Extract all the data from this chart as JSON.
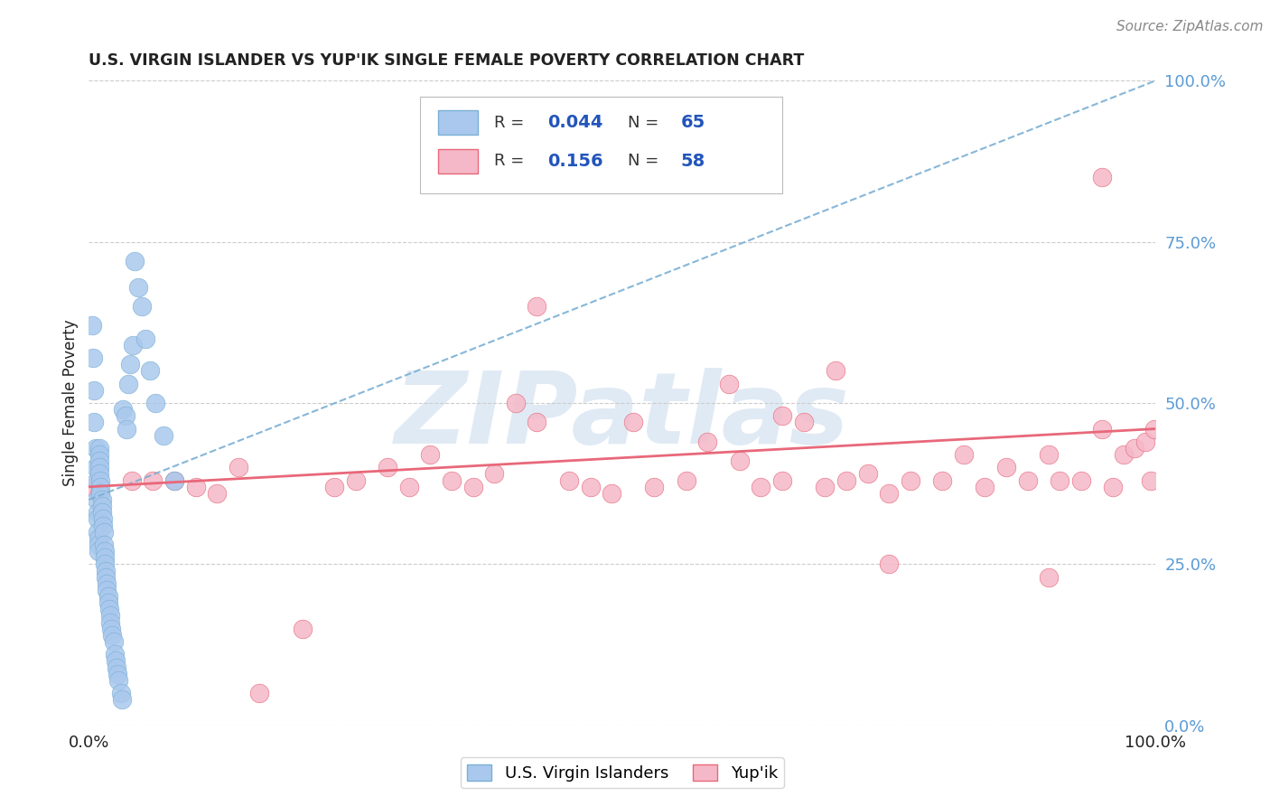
{
  "title": "U.S. VIRGIN ISLANDER VS YUP'IK SINGLE FEMALE POVERTY CORRELATION CHART",
  "source": "Source: ZipAtlas.com",
  "ylabel": "Single Female Poverty",
  "xlim": [
    0.0,
    1.0
  ],
  "ylim": [
    0.0,
    1.0
  ],
  "ytick_values": [
    0.0,
    0.25,
    0.5,
    0.75,
    1.0
  ],
  "ytick_labels": [
    "0.0%",
    "25.0%",
    "50.0%",
    "75.0%",
    "100.0%"
  ],
  "watermark_text": "ZIPatlas",
  "series": [
    {
      "name": "U.S. Virgin Islanders",
      "R": 0.044,
      "N": 65,
      "dot_color": "#aac8ed",
      "dot_edge_color": "#7aafd4",
      "line_color": "#7aafd4",
      "line_style": "--",
      "line_width": 1.5,
      "legend_box_color": "#aac8ed",
      "legend_box_edge": "#7aafd4"
    },
    {
      "name": "Yup'ik",
      "R": 0.156,
      "N": 58,
      "dot_color": "#f5b8c8",
      "dot_edge_color": "#e8687a",
      "line_color": "#e8687a",
      "line_style": "-",
      "line_width": 2.0,
      "legend_box_color": "#f5b8c8",
      "legend_box_edge": "#e8687a"
    }
  ],
  "vi_x": [
    0.003,
    0.004,
    0.005,
    0.005,
    0.006,
    0.006,
    0.007,
    0.007,
    0.008,
    0.008,
    0.008,
    0.009,
    0.009,
    0.009,
    0.01,
    0.01,
    0.01,
    0.01,
    0.01,
    0.011,
    0.011,
    0.011,
    0.012,
    0.012,
    0.012,
    0.013,
    0.013,
    0.014,
    0.014,
    0.015,
    0.015,
    0.015,
    0.016,
    0.016,
    0.017,
    0.017,
    0.018,
    0.018,
    0.019,
    0.02,
    0.02,
    0.021,
    0.022,
    0.023,
    0.024,
    0.025,
    0.026,
    0.027,
    0.028,
    0.03,
    0.031,
    0.032,
    0.034,
    0.035,
    0.037,
    0.039,
    0.041,
    0.043,
    0.046,
    0.05,
    0.053,
    0.057,
    0.062,
    0.07,
    0.08
  ],
  "vi_y": [
    0.62,
    0.57,
    0.52,
    0.47,
    0.43,
    0.4,
    0.38,
    0.35,
    0.33,
    0.32,
    0.3,
    0.29,
    0.28,
    0.27,
    0.43,
    0.42,
    0.41,
    0.4,
    0.39,
    0.38,
    0.37,
    0.36,
    0.35,
    0.34,
    0.33,
    0.32,
    0.31,
    0.3,
    0.28,
    0.27,
    0.26,
    0.25,
    0.24,
    0.23,
    0.22,
    0.21,
    0.2,
    0.19,
    0.18,
    0.17,
    0.16,
    0.15,
    0.14,
    0.13,
    0.11,
    0.1,
    0.09,
    0.08,
    0.07,
    0.05,
    0.04,
    0.49,
    0.48,
    0.46,
    0.53,
    0.56,
    0.59,
    0.72,
    0.68,
    0.65,
    0.6,
    0.55,
    0.5,
    0.45,
    0.38
  ],
  "yupik_x": [
    0.005,
    0.01,
    0.04,
    0.06,
    0.08,
    0.1,
    0.12,
    0.16,
    0.2,
    0.23,
    0.25,
    0.28,
    0.3,
    0.32,
    0.34,
    0.36,
    0.38,
    0.4,
    0.42,
    0.45,
    0.47,
    0.49,
    0.51,
    0.53,
    0.56,
    0.58,
    0.61,
    0.63,
    0.65,
    0.67,
    0.69,
    0.71,
    0.73,
    0.75,
    0.77,
    0.8,
    0.82,
    0.84,
    0.86,
    0.88,
    0.9,
    0.91,
    0.93,
    0.95,
    0.96,
    0.97,
    0.98,
    0.99,
    0.995,
    0.999,
    0.14,
    0.42,
    0.6,
    0.65,
    0.7,
    0.75,
    0.9,
    0.95
  ],
  "yupik_y": [
    0.37,
    0.36,
    0.38,
    0.38,
    0.38,
    0.37,
    0.36,
    0.05,
    0.15,
    0.37,
    0.38,
    0.4,
    0.37,
    0.42,
    0.38,
    0.37,
    0.39,
    0.5,
    0.47,
    0.38,
    0.37,
    0.36,
    0.47,
    0.37,
    0.38,
    0.44,
    0.41,
    0.37,
    0.38,
    0.47,
    0.37,
    0.38,
    0.39,
    0.36,
    0.38,
    0.38,
    0.42,
    0.37,
    0.4,
    0.38,
    0.42,
    0.38,
    0.38,
    0.46,
    0.37,
    0.42,
    0.43,
    0.44,
    0.38,
    0.46,
    0.4,
    0.65,
    0.53,
    0.48,
    0.55,
    0.25,
    0.23,
    0.85
  ],
  "grid_color": "#cccccc",
  "background_color": "#ffffff",
  "title_color": "#222222",
  "source_color": "#888888",
  "axis_tick_color": "#222222",
  "right_tick_color": "#5b9bd5",
  "watermark_color": "#ccdcee",
  "watermark_alpha": 0.6,
  "legend_R_N_color": "#2255bb",
  "legend_text_color": "#333333"
}
